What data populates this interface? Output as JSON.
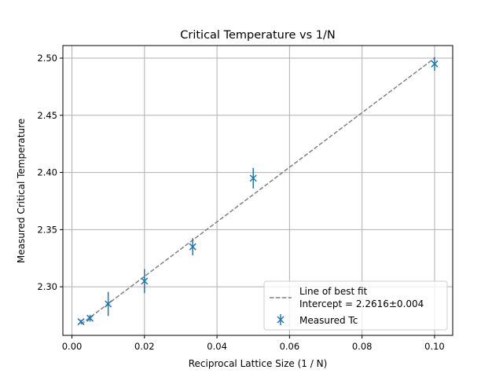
{
  "chart_data": {
    "type": "scatter",
    "title": "Critical Temperature vs 1/N",
    "xlabel": "Reciprocal Lattice Size (1 / N)",
    "ylabel": "Measured Critical Temperature",
    "xlim": [
      -0.0025,
      0.105
    ],
    "ylim": [
      2.2575,
      2.511
    ],
    "xticks": [
      0.0,
      0.02,
      0.04,
      0.06,
      0.08,
      0.1
    ],
    "xtick_labels": [
      "0.00",
      "0.02",
      "0.04",
      "0.06",
      "0.08",
      "0.10"
    ],
    "yticks": [
      2.3,
      2.35,
      2.4,
      2.45,
      2.5
    ],
    "ytick_labels": [
      "2.30",
      "2.35",
      "2.40",
      "2.45",
      "2.50"
    ],
    "grid": true,
    "legend_position": "bottom-right",
    "series": [
      {
        "name": "Measured Tc",
        "kind": "errorbar",
        "marker": "x",
        "color": "#1f77b4",
        "x": [
          0.0025,
          0.005,
          0.01,
          0.02,
          0.0333,
          0.05,
          0.1
        ],
        "y": [
          2.2695,
          2.2725,
          2.285,
          2.305,
          2.335,
          2.395,
          2.495
        ],
        "yerr": [
          0.0015,
          0.003,
          0.0105,
          0.0105,
          0.0075,
          0.009,
          0.006
        ]
      },
      {
        "name": "Line of best fit\nIntercept = 2.2616±0.004",
        "kind": "line",
        "style": "dashed",
        "color": "#808080",
        "x": [
          0.0025,
          0.1
        ],
        "y": [
          2.2673,
          2.5
        ]
      }
    ],
    "legend": [
      {
        "line1": "Line of best fit",
        "line2": "Intercept = 2.2616±0.004"
      },
      {
        "line1": "Measured Tc"
      }
    ]
  }
}
